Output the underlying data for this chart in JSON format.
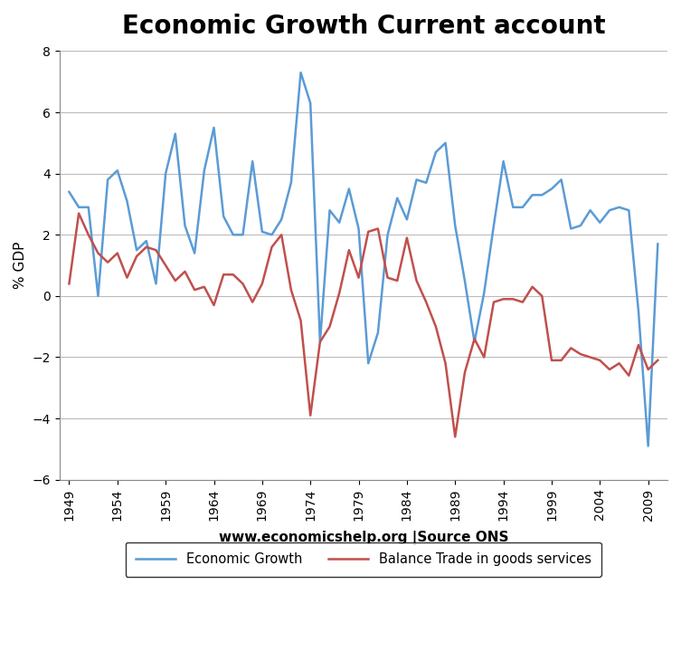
{
  "title": "Economic Growth Current account",
  "ylabel": "% GDP",
  "xlabel": "www.economicshelp.org |Source ONS",
  "ylim": [
    -6,
    8
  ],
  "yticks": [
    -6,
    -4,
    -2,
    0,
    2,
    4,
    6,
    8
  ],
  "legend_entries": [
    "Economic Growth",
    "Balance Trade in goods services"
  ],
  "growth_color": "#5B9BD5",
  "trade_color": "#C0504D",
  "years": [
    1949,
    1950,
    1951,
    1952,
    1953,
    1954,
    1955,
    1956,
    1957,
    1958,
    1959,
    1960,
    1961,
    1962,
    1963,
    1964,
    1965,
    1966,
    1967,
    1968,
    1969,
    1970,
    1971,
    1972,
    1973,
    1974,
    1975,
    1976,
    1977,
    1978,
    1979,
    1980,
    1981,
    1982,
    1983,
    1984,
    1985,
    1986,
    1987,
    1988,
    1989,
    1990,
    1991,
    1992,
    1993,
    1994,
    1995,
    1996,
    1997,
    1998,
    1999,
    2000,
    2001,
    2002,
    2003,
    2004,
    2005,
    2006,
    2007,
    2008,
    2009,
    2010
  ],
  "economic_growth": [
    3.4,
    2.9,
    2.9,
    0.0,
    3.8,
    4.1,
    3.1,
    1.5,
    1.8,
    0.4,
    4.0,
    5.3,
    2.3,
    1.4,
    4.1,
    5.5,
    2.6,
    2.0,
    2.0,
    4.4,
    2.1,
    2.0,
    2.5,
    3.7,
    7.3,
    6.3,
    -1.5,
    2.8,
    2.4,
    3.5,
    2.2,
    -2.2,
    -1.2,
    2.0,
    3.2,
    2.5,
    3.8,
    3.7,
    4.7,
    5.0,
    2.3,
    0.5,
    -1.5,
    0.1,
    2.3,
    4.4,
    2.9,
    2.9,
    3.3,
    3.3,
    3.5,
    3.8,
    2.2,
    2.3,
    2.8,
    2.4,
    2.8,
    2.9,
    2.8,
    -0.5,
    -4.9,
    1.7
  ],
  "balance_trade": [
    0.4,
    2.7,
    2.0,
    1.4,
    1.1,
    1.4,
    0.6,
    1.3,
    1.6,
    1.5,
    1.0,
    0.5,
    0.8,
    0.2,
    0.3,
    -0.3,
    0.7,
    0.7,
    0.4,
    -0.2,
    0.4,
    1.6,
    2.0,
    0.2,
    -0.8,
    -3.9,
    -1.5,
    -1.0,
    0.1,
    1.5,
    0.6,
    2.1,
    2.2,
    0.6,
    0.5,
    1.9,
    0.5,
    -0.2,
    -1.0,
    -2.2,
    -4.6,
    -2.5,
    -1.4,
    -2.0,
    -0.2,
    -0.1,
    -0.1,
    -0.2,
    0.3,
    0.0,
    -2.1,
    -2.1,
    -1.7,
    -1.9,
    -2.0,
    -2.1,
    -2.4,
    -2.2,
    -2.6,
    -1.6,
    -2.4,
    -2.1
  ],
  "xtick_years": [
    1949,
    1954,
    1959,
    1964,
    1969,
    1974,
    1979,
    1984,
    1989,
    1994,
    1999,
    2004,
    2009
  ],
  "xlim": [
    1948,
    2011
  ],
  "title_fontsize": 20,
  "axis_label_fontsize": 11,
  "tick_fontsize": 10,
  "background_color": "#FFFFFF",
  "grid_color": "#AAAAAA",
  "grid_linewidth": 0.8
}
